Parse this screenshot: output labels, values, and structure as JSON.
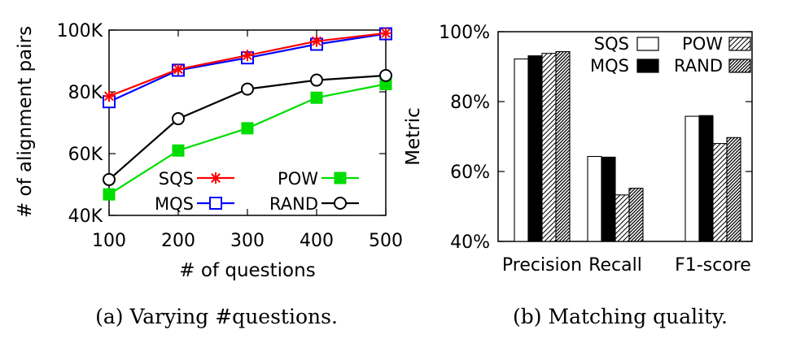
{
  "chart_data": [
    {
      "type": "line",
      "caption": "(a)  Varying #questions.",
      "xlabel": "# of questions",
      "ylabel": "# of alignment pairs",
      "x": [
        100,
        200,
        300,
        400,
        500
      ],
      "xticks": [
        "100",
        "200",
        "300",
        "400",
        "500"
      ],
      "ylim": [
        40000,
        100000
      ],
      "yticks": [
        {
          "value": 40000,
          "label": "40K"
        },
        {
          "value": 60000,
          "label": "60K"
        },
        {
          "value": 80000,
          "label": "80K"
        },
        {
          "value": 100000,
          "label": "100K"
        }
      ],
      "series": [
        {
          "name": "SQS",
          "marker": "star",
          "color": "#ff0000",
          "values": [
            78600,
            87300,
            91800,
            96400,
            99000
          ]
        },
        {
          "name": "MQS",
          "marker": "open-square",
          "color": "#0000ff",
          "values": [
            76800,
            87000,
            91000,
            95400,
            98800
          ]
        },
        {
          "name": "POW",
          "marker": "filled-square",
          "color": "#00dd00",
          "values": [
            46800,
            61000,
            68200,
            78100,
            82500
          ]
        },
        {
          "name": "RAND",
          "marker": "open-circle",
          "color": "#000000",
          "values": [
            51600,
            71300,
            80900,
            83800,
            85300
          ]
        }
      ]
    },
    {
      "type": "bar",
      "caption": "(b)  Matching quality.",
      "ylabel": "Metric",
      "categories": [
        "Precision",
        "Recall",
        "F1-score"
      ],
      "ylim": [
        40,
        100
      ],
      "yticks": [
        {
          "value": 40,
          "label": "40%"
        },
        {
          "value": 60,
          "label": "60%"
        },
        {
          "value": 80,
          "label": "80%"
        },
        {
          "value": 100,
          "label": "100%"
        }
      ],
      "series": [
        {
          "name": "SQS",
          "fill": "white",
          "values": [
            92.2,
            64.3,
            75.8
          ]
        },
        {
          "name": "MQS",
          "fill": "black",
          "values": [
            93.1,
            64.1,
            76.0
          ]
        },
        {
          "name": "POW",
          "fill": "hatch-light",
          "values": [
            93.8,
            53.3,
            68.0
          ]
        },
        {
          "name": "RAND",
          "fill": "hatch-dense",
          "values": [
            94.3,
            55.2,
            69.7
          ]
        }
      ]
    }
  ]
}
